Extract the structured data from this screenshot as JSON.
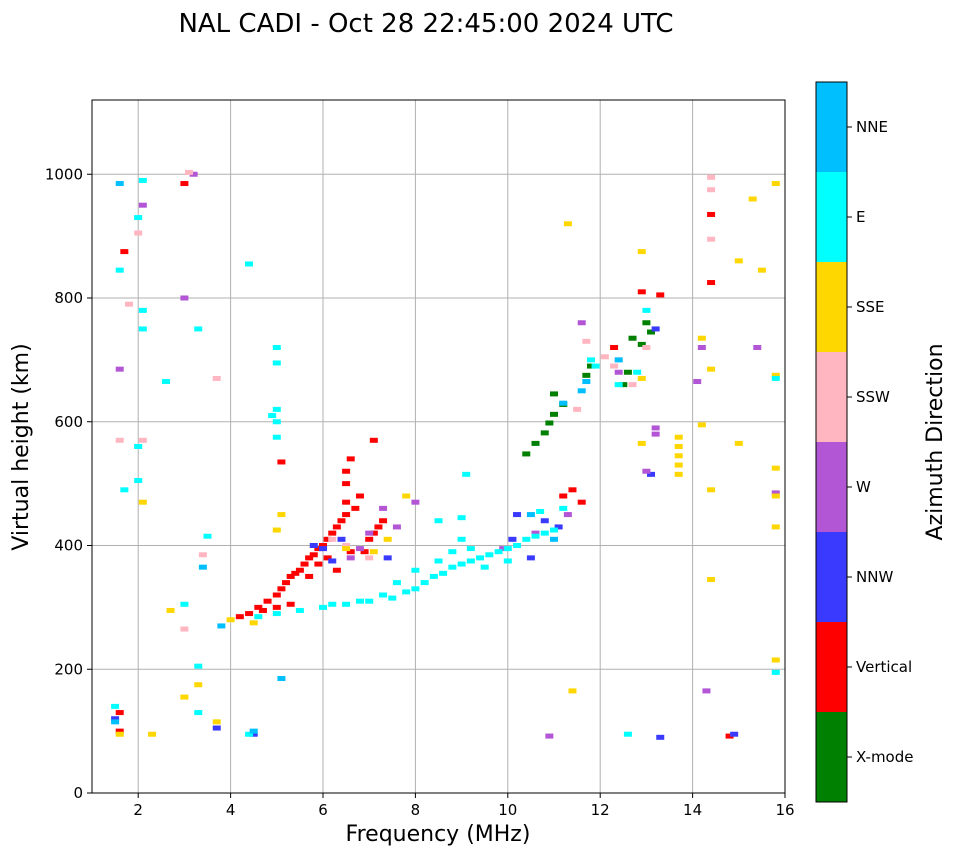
{
  "chart_data": {
    "type": "scatter",
    "title": "NAL CADI - Oct 28 22:45:00 2024 UTC",
    "xlabel": "Frequency (MHz)",
    "ylabel": "Virtual height (km)",
    "xlim": [
      1,
      16
    ],
    "ylim": [
      0,
      1120
    ],
    "xticks": [
      "2",
      "4",
      "6",
      "8",
      "10",
      "12",
      "14",
      "16"
    ],
    "yticks": [
      "0",
      "200",
      "400",
      "600",
      "800",
      "1000"
    ],
    "grid": true,
    "colorbar": {
      "label": "Azimuth Direction",
      "categories": [
        {
          "name": "X-mode",
          "color": "#008000"
        },
        {
          "name": "Vertical",
          "color": "#ff0000"
        },
        {
          "name": "NNW",
          "color": "#3a3aff"
        },
        {
          "name": "W",
          "color": "#b356d6"
        },
        {
          "name": "SSW",
          "color": "#ffb6c1"
        },
        {
          "name": "SSE",
          "color": "#ffd700"
        },
        {
          "name": "E",
          "color": "#00ffff"
        },
        {
          "name": "NNE",
          "color": "#00bfff"
        }
      ]
    },
    "series": [
      {
        "name": "X-mode",
        "points": [
          [
            10.4,
            548
          ],
          [
            10.6,
            565
          ],
          [
            10.8,
            582
          ],
          [
            10.9,
            598
          ],
          [
            11.0,
            612
          ],
          [
            11.2,
            628
          ],
          [
            11.0,
            645
          ],
          [
            11.7,
            675
          ],
          [
            11.8,
            690
          ],
          [
            12.5,
            660
          ],
          [
            12.6,
            680
          ],
          [
            12.7,
            735
          ],
          [
            12.9,
            725
          ],
          [
            13.0,
            760
          ],
          [
            13.1,
            745
          ]
        ]
      },
      {
        "name": "Vertical",
        "points": [
          [
            4.2,
            285
          ],
          [
            4.4,
            290
          ],
          [
            4.6,
            300
          ],
          [
            4.8,
            310
          ],
          [
            5.0,
            320
          ],
          [
            5.1,
            330
          ],
          [
            5.2,
            340
          ],
          [
            5.3,
            350
          ],
          [
            5.4,
            355
          ],
          [
            5.5,
            360
          ],
          [
            5.6,
            370
          ],
          [
            5.7,
            380
          ],
          [
            5.8,
            385
          ],
          [
            5.9,
            395
          ],
          [
            6.0,
            400
          ],
          [
            6.1,
            410
          ],
          [
            6.2,
            420
          ],
          [
            6.3,
            430
          ],
          [
            6.4,
            440
          ],
          [
            6.5,
            450
          ],
          [
            6.5,
            470
          ],
          [
            6.5,
            500
          ],
          [
            6.5,
            520
          ],
          [
            6.6,
            540
          ],
          [
            6.7,
            460
          ],
          [
            6.8,
            480
          ],
          [
            6.9,
            390
          ],
          [
            7.0,
            410
          ],
          [
            7.1,
            420
          ],
          [
            7.2,
            430
          ],
          [
            7.3,
            440
          ],
          [
            5.7,
            350
          ],
          [
            5.9,
            370
          ],
          [
            6.1,
            380
          ],
          [
            6.3,
            360
          ],
          [
            6.6,
            390
          ],
          [
            5.0,
            300
          ],
          [
            5.3,
            305
          ],
          [
            4.7,
            295
          ],
          [
            11.2,
            480
          ],
          [
            11.4,
            490
          ],
          [
            11.6,
            470
          ],
          [
            12.3,
            720
          ],
          [
            12.9,
            810
          ],
          [
            13.3,
            805
          ],
          [
            14.4,
            935
          ],
          [
            14.4,
            825
          ],
          [
            5.1,
            535
          ],
          [
            7.1,
            570
          ],
          [
            1.7,
            875
          ],
          [
            1.6,
            100
          ],
          [
            1.6,
            130
          ],
          [
            3.0,
            985
          ],
          [
            14.8,
            92
          ]
        ]
      },
      {
        "name": "NNW",
        "points": [
          [
            5.8,
            400
          ],
          [
            6.0,
            395
          ],
          [
            6.2,
            375
          ],
          [
            6.4,
            410
          ],
          [
            7.4,
            380
          ],
          [
            10.1,
            410
          ],
          [
            10.2,
            450
          ],
          [
            10.5,
            380
          ],
          [
            10.8,
            440
          ],
          [
            11.1,
            430
          ],
          [
            13.2,
            750
          ],
          [
            13.1,
            515
          ],
          [
            13.3,
            90
          ],
          [
            14.9,
            95
          ],
          [
            1.5,
            120
          ],
          [
            4.5,
            95
          ],
          [
            3.7,
            105
          ]
        ]
      },
      {
        "name": "W",
        "points": [
          [
            6.6,
            380
          ],
          [
            6.8,
            395
          ],
          [
            7.0,
            420
          ],
          [
            7.3,
            460
          ],
          [
            7.6,
            430
          ],
          [
            8.0,
            470
          ],
          [
            9.9,
            395
          ],
          [
            10.6,
            420
          ],
          [
            11.3,
            450
          ],
          [
            11.6,
            760
          ],
          [
            12.4,
            680
          ],
          [
            13.0,
            520
          ],
          [
            13.2,
            580
          ],
          [
            13.2,
            590
          ],
          [
            14.1,
            665
          ],
          [
            14.2,
            720
          ],
          [
            14.3,
            165
          ],
          [
            15.4,
            720
          ],
          [
            15.8,
            485
          ],
          [
            10.9,
            92
          ],
          [
            3.0,
            800
          ],
          [
            3.2,
            1000
          ],
          [
            1.6,
            685
          ],
          [
            2.1,
            950
          ]
        ]
      },
      {
        "name": "SSW",
        "points": [
          [
            6.2,
            410
          ],
          [
            6.5,
            400
          ],
          [
            7.0,
            380
          ],
          [
            11.5,
            620
          ],
          [
            11.7,
            730
          ],
          [
            12.1,
            705
          ],
          [
            12.3,
            690
          ],
          [
            12.4,
            700
          ],
          [
            12.7,
            660
          ],
          [
            13.0,
            720
          ],
          [
            14.4,
            995
          ],
          [
            14.4,
            895
          ],
          [
            14.4,
            975
          ],
          [
            3.1,
            1003
          ],
          [
            1.8,
            790
          ],
          [
            2.0,
            905
          ],
          [
            1.6,
            570
          ],
          [
            2.1,
            570
          ],
          [
            3.0,
            265
          ],
          [
            3.4,
            385
          ],
          [
            3.7,
            670
          ]
        ]
      },
      {
        "name": "SSE",
        "points": [
          [
            4.0,
            280
          ],
          [
            4.5,
            275
          ],
          [
            5.1,
            450
          ],
          [
            5.0,
            425
          ],
          [
            6.5,
            395
          ],
          [
            7.1,
            390
          ],
          [
            7.4,
            410
          ],
          [
            7.8,
            480
          ],
          [
            11.3,
            920
          ],
          [
            11.4,
            165
          ],
          [
            12.9,
            875
          ],
          [
            12.9,
            670
          ],
          [
            12.9,
            565
          ],
          [
            13.7,
            575
          ],
          [
            13.7,
            560
          ],
          [
            13.7,
            545
          ],
          [
            13.7,
            530
          ],
          [
            13.7,
            515
          ],
          [
            14.2,
            595
          ],
          [
            14.2,
            735
          ],
          [
            14.4,
            490
          ],
          [
            14.4,
            345
          ],
          [
            14.4,
            685
          ],
          [
            15.0,
            860
          ],
          [
            15.0,
            565
          ],
          [
            15.3,
            960
          ],
          [
            15.5,
            845
          ],
          [
            15.8,
            985
          ],
          [
            15.8,
            675
          ],
          [
            15.8,
            525
          ],
          [
            15.8,
            480
          ],
          [
            15.8,
            430
          ],
          [
            15.8,
            215
          ],
          [
            2.7,
            295
          ],
          [
            3.0,
            155
          ],
          [
            3.3,
            175
          ],
          [
            3.7,
            115
          ],
          [
            2.3,
            95
          ],
          [
            2.1,
            470
          ],
          [
            1.6,
            95
          ]
        ]
      },
      {
        "name": "E",
        "points": [
          [
            4.6,
            285
          ],
          [
            5.0,
            290
          ],
          [
            5.5,
            295
          ],
          [
            6.0,
            300
          ],
          [
            6.5,
            305
          ],
          [
            7.0,
            310
          ],
          [
            7.5,
            315
          ],
          [
            7.8,
            325
          ],
          [
            8.0,
            330
          ],
          [
            8.2,
            340
          ],
          [
            8.4,
            350
          ],
          [
            8.6,
            355
          ],
          [
            8.8,
            365
          ],
          [
            9.0,
            370
          ],
          [
            9.2,
            375
          ],
          [
            9.4,
            380
          ],
          [
            9.6,
            385
          ],
          [
            9.8,
            390
          ],
          [
            10.0,
            395
          ],
          [
            10.2,
            400
          ],
          [
            10.4,
            410
          ],
          [
            10.6,
            415
          ],
          [
            10.8,
            420
          ],
          [
            11.0,
            425
          ],
          [
            8.5,
            375
          ],
          [
            8.8,
            390
          ],
          [
            9.0,
            410
          ],
          [
            9.2,
            395
          ],
          [
            8.0,
            360
          ],
          [
            7.6,
            340
          ],
          [
            7.3,
            320
          ],
          [
            6.8,
            310
          ],
          [
            6.2,
            305
          ],
          [
            9.5,
            365
          ],
          [
            10.0,
            375
          ],
          [
            10.7,
            455
          ],
          [
            11.2,
            460
          ],
          [
            11.8,
            700
          ],
          [
            11.9,
            690
          ],
          [
            12.4,
            660
          ],
          [
            12.8,
            680
          ],
          [
            13.0,
            780
          ],
          [
            15.8,
            670
          ],
          [
            15.8,
            195
          ],
          [
            12.6,
            95
          ],
          [
            4.4,
            95
          ],
          [
            5.0,
            575
          ],
          [
            5.0,
            600
          ],
          [
            5.0,
            620
          ],
          [
            5.0,
            695
          ],
          [
            5.0,
            720
          ],
          [
            4.9,
            610
          ],
          [
            3.5,
            415
          ],
          [
            3.3,
            205
          ],
          [
            3.3,
            130
          ],
          [
            4.4,
            855
          ],
          [
            1.5,
            140
          ],
          [
            2.1,
            990
          ],
          [
            2.1,
            780
          ],
          [
            2.1,
            750
          ],
          [
            2.0,
            930
          ],
          [
            1.6,
            845
          ],
          [
            1.7,
            490
          ],
          [
            2.0,
            560
          ],
          [
            2.0,
            505
          ],
          [
            2.6,
            665
          ],
          [
            3.3,
            750
          ],
          [
            3.0,
            305
          ],
          [
            9.1,
            515
          ],
          [
            8.5,
            440
          ],
          [
            9.0,
            445
          ]
        ]
      },
      {
        "name": "NNE",
        "points": [
          [
            10.5,
            450
          ],
          [
            11.0,
            410
          ],
          [
            11.2,
            630
          ],
          [
            11.6,
            650
          ],
          [
            11.7,
            665
          ],
          [
            12.4,
            700
          ],
          [
            1.6,
            985
          ],
          [
            1.5,
            115
          ],
          [
            4.5,
            100
          ],
          [
            5.1,
            185
          ],
          [
            3.4,
            365
          ],
          [
            3.8,
            270
          ]
        ]
      }
    ]
  }
}
